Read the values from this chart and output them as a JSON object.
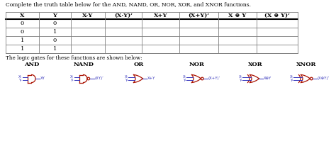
{
  "title": "Complete the truth table below for the AND, NAND, OR, NOR, XOR, and XNOR functions.",
  "table_headers": [
    "X",
    "Y",
    "X·Y",
    "(X·Y)’",
    "X+Y",
    "(X+Y)’",
    "X ⊕ Y",
    "(X ⊕ Y)’"
  ],
  "table_rows": [
    [
      "0",
      "0",
      "",
      "",
      "",
      "",
      "",
      ""
    ],
    [
      "0",
      "1",
      "",
      "",
      "",
      "",
      "",
      ""
    ],
    [
      "1",
      "0",
      "",
      "",
      "",
      "",
      "",
      ""
    ],
    [
      "1",
      "1",
      "",
      "",
      "",
      "",
      "",
      ""
    ]
  ],
  "gate_label": "The logic gates for these functions are shown below:",
  "gate_names": [
    "AND",
    "NAND",
    "OR",
    "NOR",
    "XOR",
    "XNOR"
  ],
  "gate_out_labels": [
    "XY",
    "(XY)’",
    "X+Y",
    "(X+Y)’",
    "X⊕Y",
    "(X⊕Y)’"
  ],
  "bg_color": "#ffffff",
  "text_color": "#000000",
  "gate_color": "#aa1100",
  "input_color": "#3333bb"
}
